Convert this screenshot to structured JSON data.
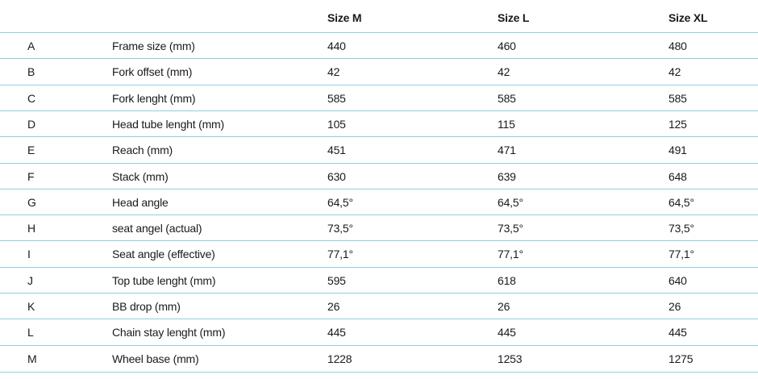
{
  "headers": [
    "",
    "",
    "Size M",
    "Size L",
    "Size XL"
  ],
  "rows": [
    {
      "letter": "A",
      "label": "Frame size (mm)",
      "m": "440",
      "l": "460",
      "xl": "480"
    },
    {
      "letter": "B",
      "label": "Fork offset (mm)",
      "m": "42",
      "l": "42",
      "xl": "42"
    },
    {
      "letter": "C",
      "label": "Fork lenght (mm)",
      "m": "585",
      "l": "585",
      "xl": "585"
    },
    {
      "letter": "D",
      "label": "Head tube lenght (mm)",
      "m": "105",
      "l": "115",
      "xl": "125"
    },
    {
      "letter": "E",
      "label": "Reach (mm)",
      "m": "451",
      "l": "471",
      "xl": "491"
    },
    {
      "letter": "F",
      "label": "Stack (mm)",
      "m": "630",
      "l": "639",
      "xl": "648"
    },
    {
      "letter": "G",
      "label": "Head angle",
      "m": "64,5°",
      "l": "64,5°",
      "xl": "64,5°"
    },
    {
      "letter": "H",
      "label": "seat angel (actual)",
      "m": "73,5°",
      "l": "73,5°",
      "xl": "73,5°"
    },
    {
      "letter": "I",
      "label": "Seat angle (effective)",
      "m": "77,1°",
      "l": "77,1°",
      "xl": "77,1°"
    },
    {
      "letter": "J",
      "label": "Top tube lenght (mm)",
      "m": "595",
      "l": "618",
      "xl": "640"
    },
    {
      "letter": "K",
      "label": "BB drop (mm)",
      "m": "26",
      "l": "26",
      "xl": "26"
    },
    {
      "letter": "L",
      "label": "Chain stay lenght (mm)",
      "m": "445",
      "l": "445",
      "xl": "445"
    },
    {
      "letter": "M",
      "label": "Wheel base (mm)",
      "m": "1228",
      "l": "1253",
      "xl": "1275"
    }
  ],
  "colors": {
    "divider": "#8fcfe0",
    "text": "#1a1a1a",
    "background": "#ffffff"
  }
}
